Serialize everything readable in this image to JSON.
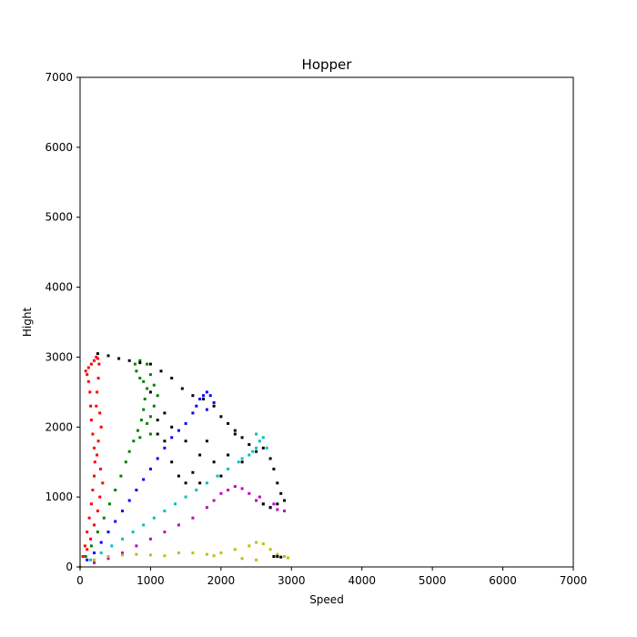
{
  "chart_data": {
    "type": "scatter",
    "title": "Hopper",
    "xlabel": "Speed",
    "ylabel": "Hight",
    "xlim": [
      0,
      7000
    ],
    "ylim": [
      0,
      7000
    ],
    "xticks": [
      0,
      1000,
      2000,
      3000,
      4000,
      5000,
      6000,
      7000
    ],
    "yticks": [
      0,
      1000,
      2000,
      3000,
      4000,
      5000,
      6000,
      7000
    ],
    "grid": false,
    "legend": "none",
    "series": [
      {
        "color": "#ff0000",
        "points": [
          [
            0,
            0
          ],
          [
            40,
            150
          ],
          [
            70,
            300
          ],
          [
            100,
            500
          ],
          [
            130,
            700
          ],
          [
            160,
            900
          ],
          [
            180,
            1100
          ],
          [
            200,
            1300
          ],
          [
            210,
            1500
          ],
          [
            200,
            1700
          ],
          [
            180,
            1900
          ],
          [
            160,
            2100
          ],
          [
            150,
            2300
          ],
          [
            140,
            2500
          ],
          [
            120,
            2650
          ],
          [
            100,
            2750
          ],
          [
            80,
            2800
          ],
          [
            120,
            2850
          ],
          [
            160,
            2900
          ],
          [
            200,
            2950
          ],
          [
            230,
            3000
          ],
          [
            250,
            2980
          ],
          [
            270,
            2900
          ],
          [
            260,
            2700
          ],
          [
            240,
            2500
          ],
          [
            230,
            2300
          ],
          [
            280,
            2200
          ],
          [
            300,
            2000
          ],
          [
            260,
            1800
          ],
          [
            240,
            1600
          ],
          [
            290,
            1400
          ],
          [
            320,
            1200
          ],
          [
            280,
            1000
          ],
          [
            250,
            800
          ],
          [
            200,
            600
          ],
          [
            150,
            400
          ],
          [
            100,
            250
          ]
        ]
      },
      {
        "color": "#008000",
        "points": [
          [
            0,
            0
          ],
          [
            80,
            150
          ],
          [
            160,
            300
          ],
          [
            250,
            500
          ],
          [
            340,
            700
          ],
          [
            420,
            900
          ],
          [
            500,
            1100
          ],
          [
            580,
            1300
          ],
          [
            650,
            1500
          ],
          [
            700,
            1650
          ],
          [
            760,
            1800
          ],
          [
            820,
            1950
          ],
          [
            870,
            2100
          ],
          [
            900,
            2250
          ],
          [
            920,
            2400
          ],
          [
            950,
            2550
          ],
          [
            900,
            2650
          ],
          [
            850,
            2700
          ],
          [
            800,
            2800
          ],
          [
            780,
            2900
          ],
          [
            850,
            2950
          ],
          [
            950,
            2900
          ],
          [
            1000,
            2750
          ],
          [
            1050,
            2600
          ],
          [
            1100,
            2450
          ],
          [
            1050,
            2300
          ],
          [
            1000,
            2150
          ],
          [
            950,
            2050
          ],
          [
            1000,
            1900
          ],
          [
            850,
            1850
          ]
        ]
      },
      {
        "color": "#0000ff",
        "points": [
          [
            0,
            0
          ],
          [
            100,
            100
          ],
          [
            200,
            200
          ],
          [
            300,
            350
          ],
          [
            400,
            500
          ],
          [
            500,
            650
          ],
          [
            600,
            800
          ],
          [
            700,
            950
          ],
          [
            800,
            1100
          ],
          [
            900,
            1250
          ],
          [
            1000,
            1400
          ],
          [
            1100,
            1550
          ],
          [
            1200,
            1700
          ],
          [
            1300,
            1850
          ],
          [
            1400,
            1950
          ],
          [
            1500,
            2050
          ],
          [
            1600,
            2200
          ],
          [
            1650,
            2300
          ],
          [
            1700,
            2400
          ],
          [
            1750,
            2450
          ],
          [
            1800,
            2500
          ],
          [
            1850,
            2450
          ],
          [
            1900,
            2350
          ],
          [
            1800,
            2250
          ]
        ]
      },
      {
        "color": "#00bfbf",
        "points": [
          [
            0,
            0
          ],
          [
            150,
            100
          ],
          [
            300,
            200
          ],
          [
            450,
            300
          ],
          [
            600,
            400
          ],
          [
            750,
            500
          ],
          [
            900,
            600
          ],
          [
            1050,
            700
          ],
          [
            1200,
            800
          ],
          [
            1350,
            900
          ],
          [
            1500,
            1000
          ],
          [
            1650,
            1100
          ],
          [
            1800,
            1200
          ],
          [
            1950,
            1300
          ],
          [
            2100,
            1400
          ],
          [
            2250,
            1500
          ],
          [
            2400,
            1600
          ],
          [
            2500,
            1700
          ],
          [
            2550,
            1800
          ],
          [
            2500,
            1900
          ],
          [
            2600,
            1850
          ],
          [
            2650,
            1700
          ],
          [
            2450,
            1650
          ],
          [
            2300,
            1550
          ]
        ]
      },
      {
        "color": "#bf00bf",
        "points": [
          [
            0,
            0
          ],
          [
            200,
            60
          ],
          [
            400,
            120
          ],
          [
            600,
            200
          ],
          [
            800,
            300
          ],
          [
            1000,
            400
          ],
          [
            1200,
            500
          ],
          [
            1400,
            600
          ],
          [
            1600,
            700
          ],
          [
            1800,
            850
          ],
          [
            1900,
            950
          ],
          [
            2000,
            1050
          ],
          [
            2100,
            1100
          ],
          [
            2200,
            1150
          ],
          [
            2300,
            1120
          ],
          [
            2400,
            1050
          ],
          [
            2500,
            950
          ],
          [
            2600,
            900
          ],
          [
            2700,
            850
          ],
          [
            2800,
            820
          ],
          [
            2900,
            800
          ],
          [
            2750,
            900
          ],
          [
            2550,
            1000
          ]
        ]
      },
      {
        "color": "#bfbf00",
        "points": [
          [
            0,
            0
          ],
          [
            200,
            100
          ],
          [
            400,
            150
          ],
          [
            600,
            170
          ],
          [
            800,
            180
          ],
          [
            1000,
            170
          ],
          [
            1200,
            160
          ],
          [
            1400,
            200
          ],
          [
            1600,
            200
          ],
          [
            1800,
            180
          ],
          [
            2000,
            200
          ],
          [
            2200,
            250
          ],
          [
            2400,
            300
          ],
          [
            2500,
            350
          ],
          [
            2600,
            330
          ],
          [
            2700,
            250
          ],
          [
            2800,
            180
          ],
          [
            2900,
            150
          ],
          [
            2950,
            130
          ],
          [
            2500,
            100
          ],
          [
            2300,
            120
          ],
          [
            1900,
            160
          ]
        ]
      },
      {
        "color": "#000000",
        "points": [
          [
            250,
            3050
          ],
          [
            400,
            3020
          ],
          [
            550,
            2980
          ],
          [
            700,
            2950
          ],
          [
            850,
            2920
          ],
          [
            1000,
            2900
          ],
          [
            1150,
            2800
          ],
          [
            1300,
            2700
          ],
          [
            1450,
            2550
          ],
          [
            1600,
            2450
          ],
          [
            1750,
            2400
          ],
          [
            1900,
            2300
          ],
          [
            2000,
            2150
          ],
          [
            2100,
            2050
          ],
          [
            2200,
            1950
          ],
          [
            2300,
            1850
          ],
          [
            2400,
            1750
          ],
          [
            2500,
            1650
          ],
          [
            2600,
            1700
          ],
          [
            2700,
            1550
          ],
          [
            2750,
            1400
          ],
          [
            2800,
            1200
          ],
          [
            2850,
            1050
          ],
          [
            2900,
            950
          ],
          [
            2800,
            900
          ],
          [
            2700,
            850
          ],
          [
            2600,
            900
          ],
          [
            1000,
            2500
          ],
          [
            1100,
            2100
          ],
          [
            1200,
            1800
          ],
          [
            1300,
            1500
          ],
          [
            1400,
            1300
          ],
          [
            1500,
            1200
          ],
          [
            1600,
            1350
          ],
          [
            1700,
            1600
          ],
          [
            1800,
            1800
          ],
          [
            1900,
            1500
          ],
          [
            2000,
            1300
          ],
          [
            2100,
            1600
          ],
          [
            2200,
            1900
          ],
          [
            2300,
            1500
          ],
          [
            1200,
            2200
          ],
          [
            1100,
            1900
          ],
          [
            1300,
            2000
          ],
          [
            1500,
            1800
          ],
          [
            1700,
            1200
          ],
          [
            2800,
            150
          ],
          [
            2750,
            150
          ],
          [
            2850,
            140
          ]
        ]
      }
    ]
  }
}
